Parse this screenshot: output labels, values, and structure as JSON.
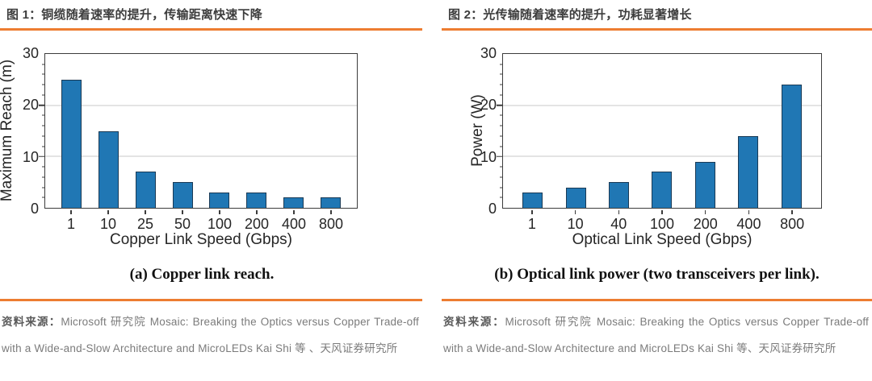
{
  "page": {
    "accent_color": "#ED7D31",
    "bar_fill_color": "#2077B4",
    "bar_edge_color": "#1A3A55"
  },
  "panels": [
    {
      "title": "图 1：铜缆随着速率的提升，传输距离快速下降",
      "caption": "(a) Copper link reach.",
      "source_label": "资料来源：",
      "source_text": "Microsoft  研究院 Mosaic: Breaking the Optics versus Copper Trade-off with a Wide-and-Slow Architecture and MicroLEDs Kai Shi 等 、天风证券研究所"
    },
    {
      "title": "图 2：光传输随着速率的提升，功耗显著增长",
      "caption": "(b) Optical link power (two transceivers per link).",
      "source_label": "资料来源：",
      "source_text": "Microsoft  研究院 Mosaic: Breaking the Optics versus Copper Trade-off with a Wide-and-Slow Architecture and MicroLEDs Kai Shi 等、天风证券研究所"
    }
  ],
  "chart_data": [
    {
      "type": "bar",
      "title": "图 1：铜缆随着速率的提升，传输距离快速下降",
      "categories": [
        "1",
        "10",
        "25",
        "50",
        "100",
        "200",
        "400",
        "800"
      ],
      "values": [
        25,
        15,
        7,
        5,
        3,
        3,
        2,
        2
      ],
      "xlabel": "Copper Link Speed (Gbps)",
      "ylabel": "Maximum Reach (m)",
      "ylim": [
        0,
        30
      ],
      "yticks": [
        0,
        10,
        20,
        30
      ],
      "minor_tick_step": 2,
      "grid": true,
      "legend": false
    },
    {
      "type": "bar",
      "title": "图 2：光传输随着速率的提升，功耗显著增长",
      "categories": [
        "1",
        "10",
        "40",
        "100",
        "200",
        "400",
        "800"
      ],
      "values": [
        3,
        4,
        5,
        7,
        9,
        14,
        24
      ],
      "xlabel": "Optical Link Speed (Gbps)",
      "ylabel": "Power (W)",
      "ylim": [
        0,
        30
      ],
      "yticks": [
        0,
        10,
        20,
        30
      ],
      "minor_tick_step": 2,
      "grid": true,
      "legend": false
    }
  ]
}
